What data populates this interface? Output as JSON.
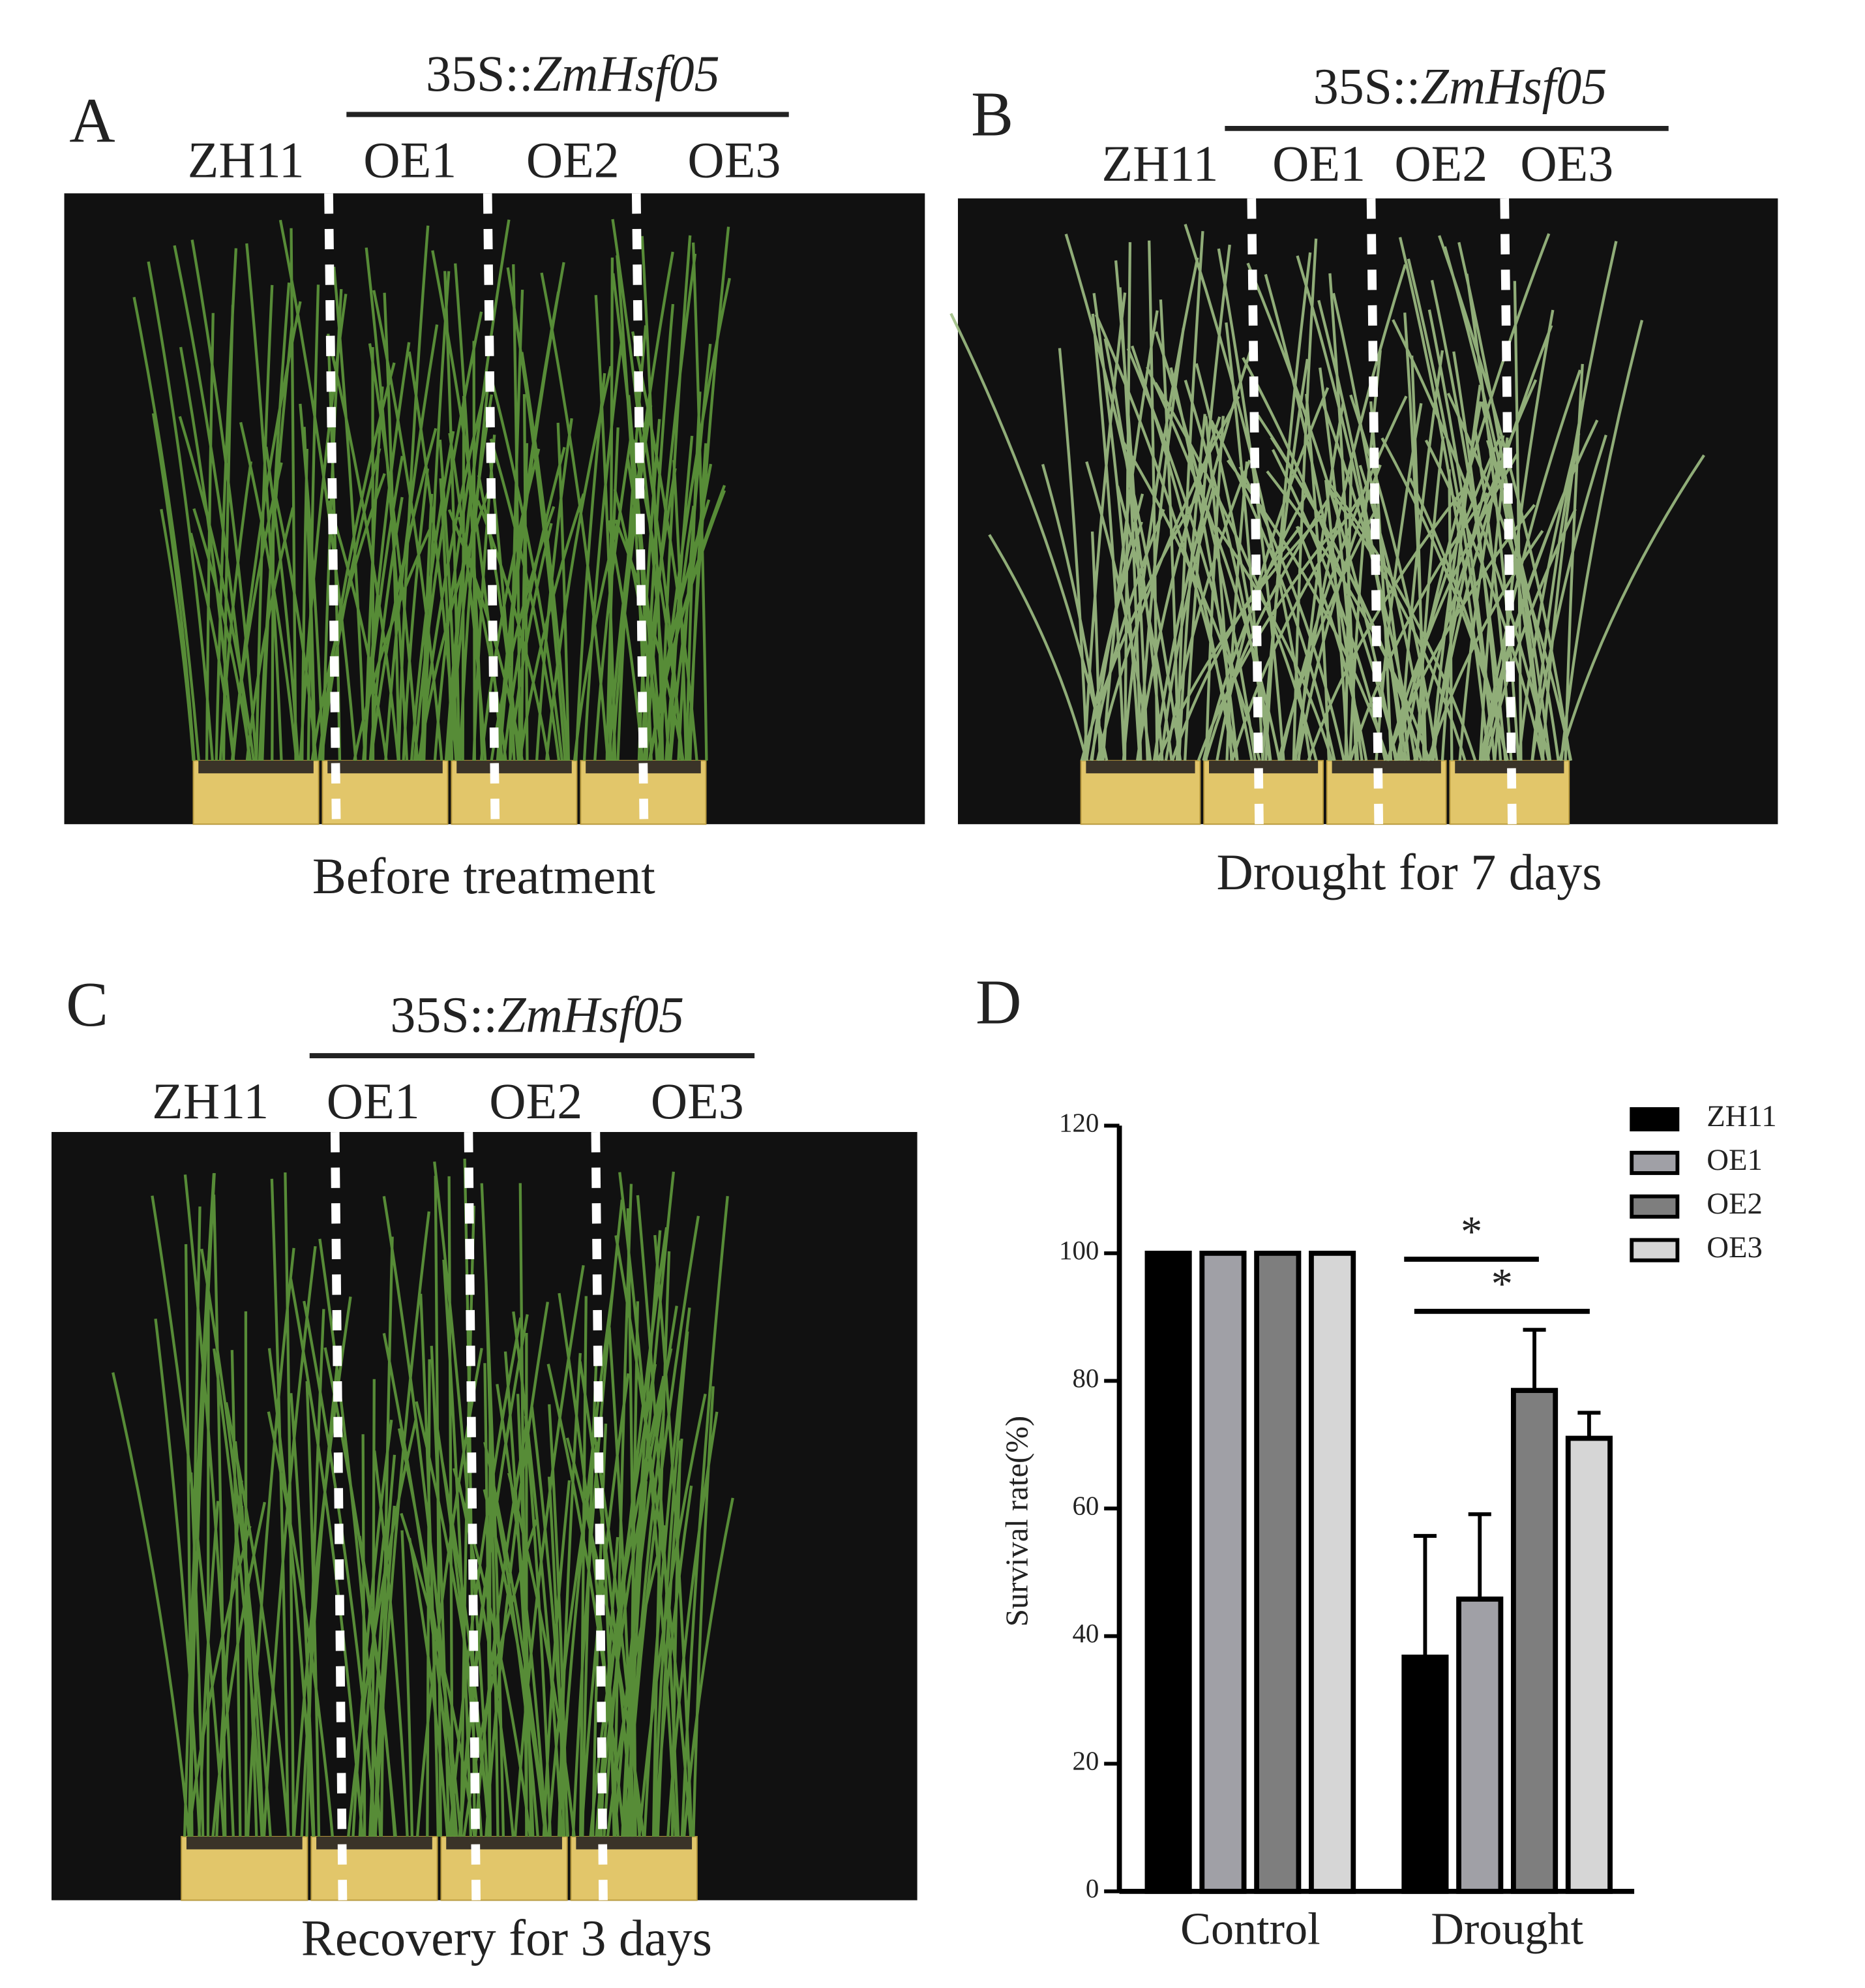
{
  "panels": [
    {
      "letter": "A",
      "promoter": "35S::",
      "gene": "ZmHsf05",
      "genotypes": [
        "ZH11",
        "OE1",
        "OE2",
        "OE3"
      ],
      "caption": "Before treatment"
    },
    {
      "letter": "B",
      "promoter": "35S::",
      "gene": "ZmHsf05",
      "genotypes": [
        "ZH11",
        "OE1",
        "OE2",
        "OE3"
      ],
      "caption": "Drought for 7 days"
    },
    {
      "letter": "C",
      "promoter": "35S::",
      "gene": "ZmHsf05",
      "genotypes": [
        "ZH11",
        "OE1",
        "OE2",
        "OE3"
      ],
      "caption": "Recovery for 3 days"
    }
  ],
  "chart_data": {
    "type": "bar",
    "panel_label": "D",
    "y_label": "Survival rate(%)",
    "categories": [
      "Control",
      "Drought"
    ],
    "series": [
      {
        "name": "ZH11",
        "color": "#000000",
        "values": [
          100,
          36.7
        ],
        "errors": [
          null,
          19
        ]
      },
      {
        "name": "OE1",
        "color": "#a0a0a6",
        "values": [
          100,
          45.8
        ],
        "errors": [
          null,
          13.3
        ]
      },
      {
        "name": "OE2",
        "color": "#7e7e7e",
        "values": [
          100,
          78.5
        ],
        "errors": [
          null,
          9.5
        ]
      },
      {
        "name": "OE3",
        "color": "#d6d6d6",
        "values": [
          100,
          71
        ],
        "errors": [
          null,
          4
        ]
      }
    ],
    "significance": [
      "*",
      "*"
    ],
    "ylim": [
      0,
      120
    ],
    "yticks": [
      0,
      20,
      40,
      60,
      80,
      100,
      120
    ]
  }
}
